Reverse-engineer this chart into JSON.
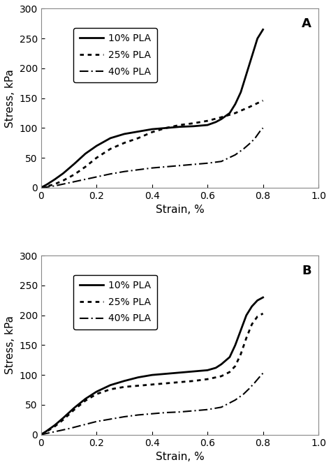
{
  "panel_A": {
    "label": "A",
    "series": [
      {
        "name": "10% PLA",
        "linestyle": "solid",
        "linewidth": 2.0,
        "color": "#000000",
        "x": [
          0,
          0.02,
          0.05,
          0.08,
          0.12,
          0.16,
          0.2,
          0.25,
          0.3,
          0.35,
          0.4,
          0.45,
          0.5,
          0.55,
          0.6,
          0.63,
          0.65,
          0.68,
          0.7,
          0.72,
          0.74,
          0.76,
          0.78,
          0.8
        ],
        "y": [
          0,
          5,
          14,
          24,
          40,
          57,
          70,
          83,
          90,
          94,
          98,
          100,
          102,
          103,
          105,
          110,
          115,
          125,
          140,
          160,
          190,
          220,
          250,
          265
        ]
      },
      {
        "name": "25% PLA",
        "linestyle": "dotted",
        "linewidth": 2.0,
        "color": "#000000",
        "x": [
          0,
          0.02,
          0.05,
          0.08,
          0.12,
          0.16,
          0.2,
          0.25,
          0.3,
          0.35,
          0.4,
          0.45,
          0.5,
          0.55,
          0.6,
          0.65,
          0.7,
          0.75,
          0.8
        ],
        "y": [
          0,
          2,
          6,
          12,
          22,
          35,
          50,
          65,
          75,
          83,
          93,
          100,
          105,
          108,
          112,
          118,
          125,
          135,
          146
        ]
      },
      {
        "name": "40% PLA",
        "linestyle": "dashdot",
        "linewidth": 1.5,
        "color": "#000000",
        "x": [
          0,
          0.02,
          0.05,
          0.1,
          0.15,
          0.2,
          0.25,
          0.3,
          0.35,
          0.4,
          0.45,
          0.5,
          0.55,
          0.6,
          0.65,
          0.7,
          0.73,
          0.75,
          0.77,
          0.79,
          0.8
        ],
        "y": [
          0,
          1,
          3,
          8,
          13,
          18,
          23,
          27,
          30,
          33,
          35,
          37,
          39,
          41,
          44,
          55,
          65,
          73,
          82,
          95,
          100
        ]
      }
    ],
    "ylabel": "Stress, kPa",
    "xlabel": "Strain, %",
    "ylim": [
      0,
      300
    ],
    "xlim": [
      0,
      1
    ],
    "yticks": [
      0,
      50,
      100,
      150,
      200,
      250,
      300
    ],
    "xticks": [
      0,
      0.2,
      0.4,
      0.6,
      0.8,
      1.0
    ]
  },
  "panel_B": {
    "label": "B",
    "series": [
      {
        "name": "10% PLA",
        "linestyle": "solid",
        "linewidth": 2.0,
        "color": "#000000",
        "x": [
          0,
          0.02,
          0.05,
          0.08,
          0.12,
          0.16,
          0.2,
          0.25,
          0.3,
          0.35,
          0.4,
          0.45,
          0.5,
          0.55,
          0.6,
          0.63,
          0.65,
          0.68,
          0.7,
          0.72,
          0.74,
          0.76,
          0.78,
          0.8
        ],
        "y": [
          0,
          6,
          16,
          28,
          45,
          60,
          72,
          83,
          90,
          96,
          100,
          102,
          104,
          106,
          108,
          112,
          118,
          130,
          150,
          175,
          200,
          215,
          225,
          230
        ]
      },
      {
        "name": "25% PLA",
        "linestyle": "dotted",
        "linewidth": 2.0,
        "color": "#000000",
        "x": [
          0,
          0.02,
          0.05,
          0.08,
          0.12,
          0.16,
          0.2,
          0.25,
          0.3,
          0.35,
          0.4,
          0.45,
          0.5,
          0.55,
          0.6,
          0.65,
          0.68,
          0.7,
          0.72,
          0.74,
          0.76,
          0.78,
          0.8
        ],
        "y": [
          0,
          5,
          14,
          25,
          42,
          57,
          68,
          76,
          80,
          82,
          84,
          86,
          88,
          90,
          93,
          98,
          105,
          115,
          135,
          162,
          185,
          198,
          203
        ]
      },
      {
        "name": "40% PLA",
        "linestyle": "dashdot",
        "linewidth": 1.5,
        "color": "#000000",
        "x": [
          0,
          0.02,
          0.05,
          0.1,
          0.15,
          0.2,
          0.25,
          0.3,
          0.35,
          0.4,
          0.45,
          0.5,
          0.55,
          0.6,
          0.65,
          0.7,
          0.73,
          0.75,
          0.77,
          0.79,
          0.8
        ],
        "y": [
          0,
          2,
          5,
          10,
          16,
          22,
          26,
          30,
          33,
          35,
          37,
          38,
          40,
          42,
          46,
          58,
          68,
          77,
          87,
          98,
          103
        ]
      }
    ],
    "ylabel": "Stress, kPa",
    "xlabel": "Strain, %",
    "ylim": [
      0,
      300
    ],
    "xlim": [
      0,
      1
    ],
    "yticks": [
      0,
      50,
      100,
      150,
      200,
      250,
      300
    ],
    "xticks": [
      0,
      0.2,
      0.4,
      0.6,
      0.8,
      1.0
    ]
  },
  "background_color": "#ffffff",
  "legend_fontsize": 10,
  "axis_fontsize": 11,
  "tick_fontsize": 10,
  "label_fontsize": 13,
  "hspace": 0.38
}
